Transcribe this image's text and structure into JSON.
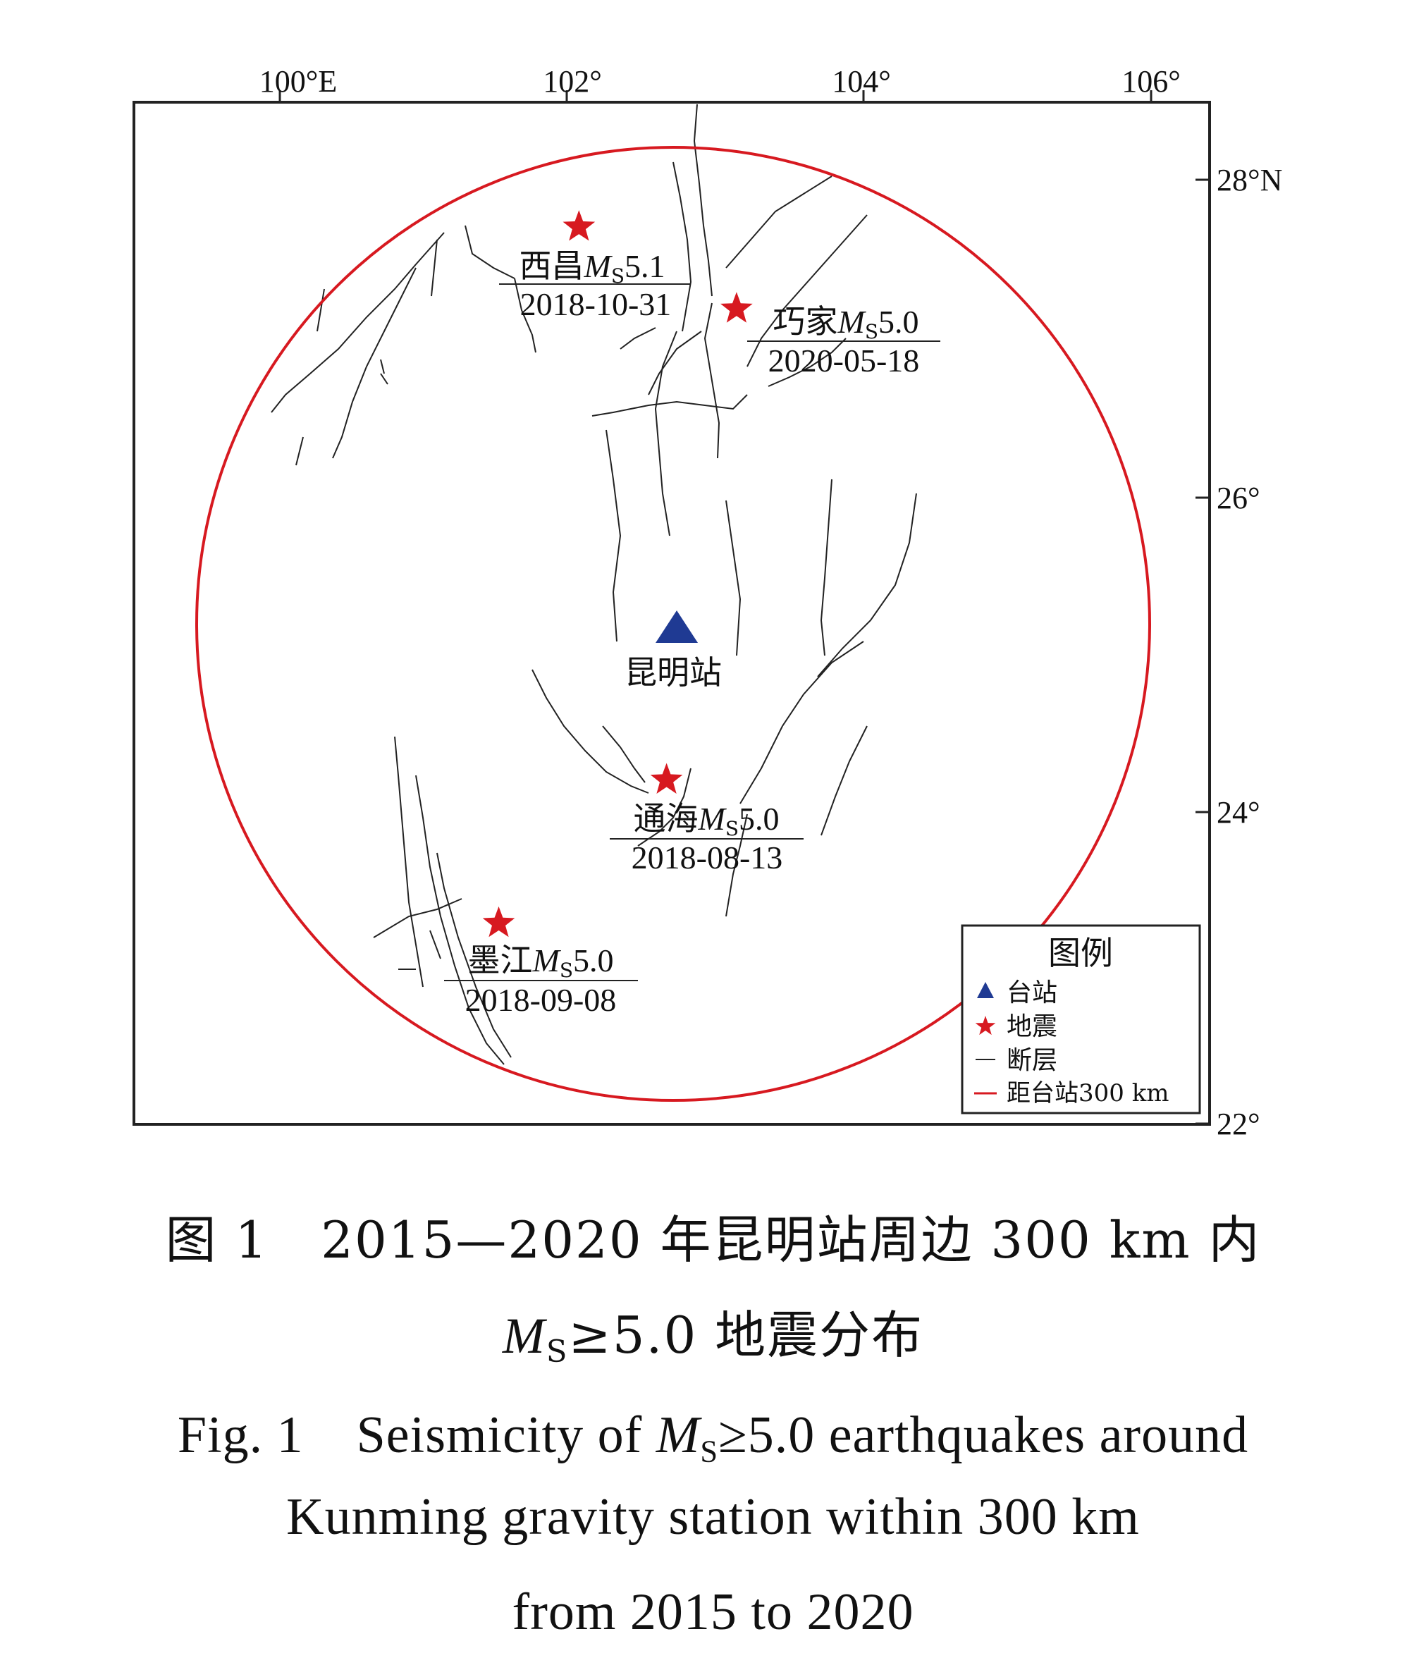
{
  "map": {
    "lon_ticks": [
      {
        "value": 100,
        "label": "100°E"
      },
      {
        "value": 102,
        "label": "102°"
      },
      {
        "value": 104,
        "label": "104°"
      },
      {
        "value": 106,
        "label": "106°"
      }
    ],
    "lat_ticks": [
      {
        "value": 28,
        "label": "28°N"
      },
      {
        "value": 26,
        "label": "26°"
      },
      {
        "value": 24,
        "label": "24°"
      },
      {
        "value": 22,
        "label": "22°"
      }
    ],
    "lon_range": [
      99.0,
      106.5
    ],
    "lat_range": [
      22.0,
      28.5
    ],
    "station": {
      "name": "昆明站",
      "lon": 102.72,
      "lat": 25.15,
      "color": "#1f3a93"
    },
    "circle_radius_km": 300,
    "circle_color": "#d71920",
    "star_color": "#d71920",
    "fault_color": "#222222",
    "earthquakes": [
      {
        "place": "西昌",
        "mag_prefix": "M",
        "mag_sub": "S",
        "mag": "5.1",
        "date": "2018-10-31",
        "lon": 102.05,
        "lat": 27.7
      },
      {
        "place": "巧家",
        "mag_prefix": "M",
        "mag_sub": "S",
        "mag": "5.0",
        "date": "2020-05-18",
        "lon": 103.13,
        "lat": 27.18
      },
      {
        "place": "通海",
        "mag_prefix": "M",
        "mag_sub": "S",
        "mag": "5.0",
        "date": "2018-08-13",
        "lon": 102.65,
        "lat": 24.19
      },
      {
        "place": "墨江",
        "mag_prefix": "M",
        "mag_sub": "S",
        "mag": "5.0",
        "date": "2018-09-08",
        "lon": 101.5,
        "lat": 23.28
      }
    ],
    "legend": {
      "title": "图例",
      "items": [
        "台站",
        "地震",
        "断层",
        "距台站300 km"
      ]
    }
  },
  "caption": {
    "zh_line1": "图 1　2015—2020 年昆明站周边 300 km 内",
    "zh_line2_prefix": "M",
    "zh_line2_sub": "S",
    "zh_line2_rest": "≥5.0 地震分布",
    "en_line1_a": "Fig. 1　Seismicity of ",
    "en_line1_m": "M",
    "en_line1_sub": "S",
    "en_line1_b": "≥5.0 earthquakes around",
    "en_line2": "Kunming gravity station within 300 km",
    "en_line3": "from 2015 to 2020"
  }
}
